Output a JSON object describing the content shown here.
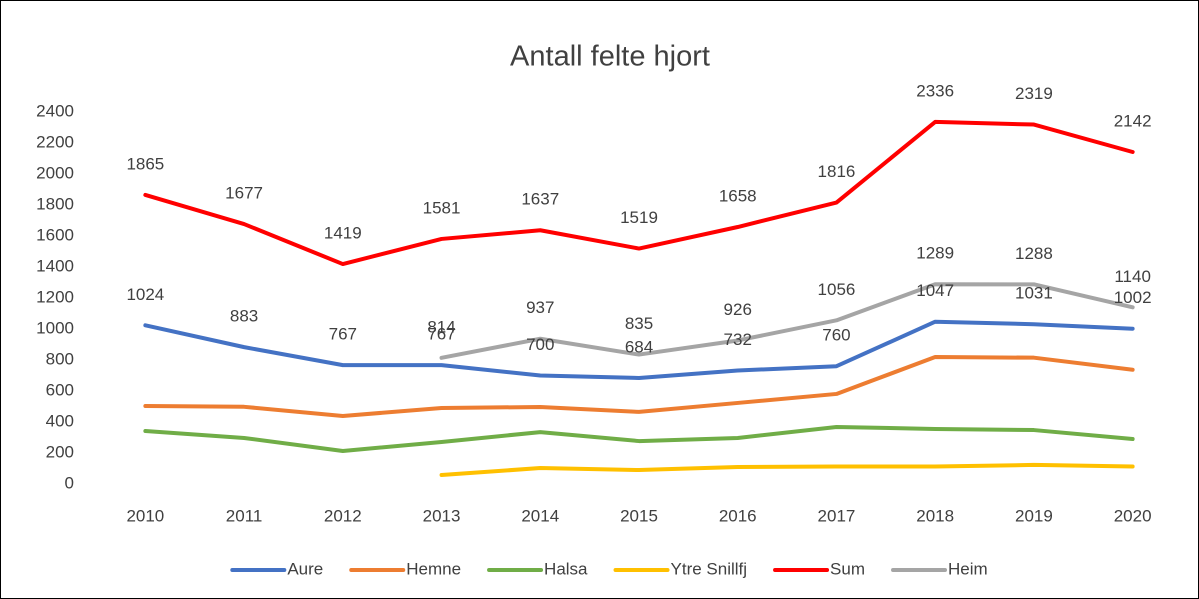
{
  "chart_data": {
    "type": "line",
    "title": "Antall felte hjort",
    "categories": [
      "2010",
      "2011",
      "2012",
      "2013",
      "2014",
      "2015",
      "2016",
      "2017",
      "2018",
      "2019",
      "2020"
    ],
    "ylim": [
      0,
      2400
    ],
    "yticks": [
      0,
      200,
      400,
      600,
      800,
      1000,
      1200,
      1400,
      1600,
      1800,
      2000,
      2200,
      2400
    ],
    "grid": false,
    "legend": "bottom",
    "series": [
      {
        "name": "Aure",
        "color": "#4472c4",
        "data_labels": true,
        "values": [
          1024,
          883,
          767,
          767,
          700,
          684,
          732,
          760,
          1047,
          1031,
          1002
        ]
      },
      {
        "name": "Hemne",
        "color": "#ed7d31",
        "data_labels": false,
        "values": [
          503,
          498,
          439,
          490,
          497,
          465,
          523,
          581,
          819,
          815,
          737
        ]
      },
      {
        "name": "Halsa",
        "color": "#70ad47",
        "data_labels": false,
        "values": [
          342,
          297,
          213,
          271,
          335,
          277,
          297,
          368,
          355,
          348,
          290
        ]
      },
      {
        "name": "Ytre Snillfj",
        "color": "#ffc000",
        "data_labels": false,
        "values": [
          null,
          null,
          null,
          58,
          103,
          90,
          110,
          113,
          113,
          123,
          113
        ]
      },
      {
        "name": "Sum",
        "color": "#ff0000",
        "data_labels": true,
        "values": [
          1865,
          1677,
          1419,
          1581,
          1637,
          1519,
          1658,
          1816,
          2336,
          2319,
          2142
        ]
      },
      {
        "name": "Heim",
        "color": "#a5a5a5",
        "data_labels": true,
        "values": [
          null,
          null,
          null,
          814,
          937,
          835,
          926,
          1056,
          1289,
          1288,
          1140
        ]
      }
    ]
  }
}
